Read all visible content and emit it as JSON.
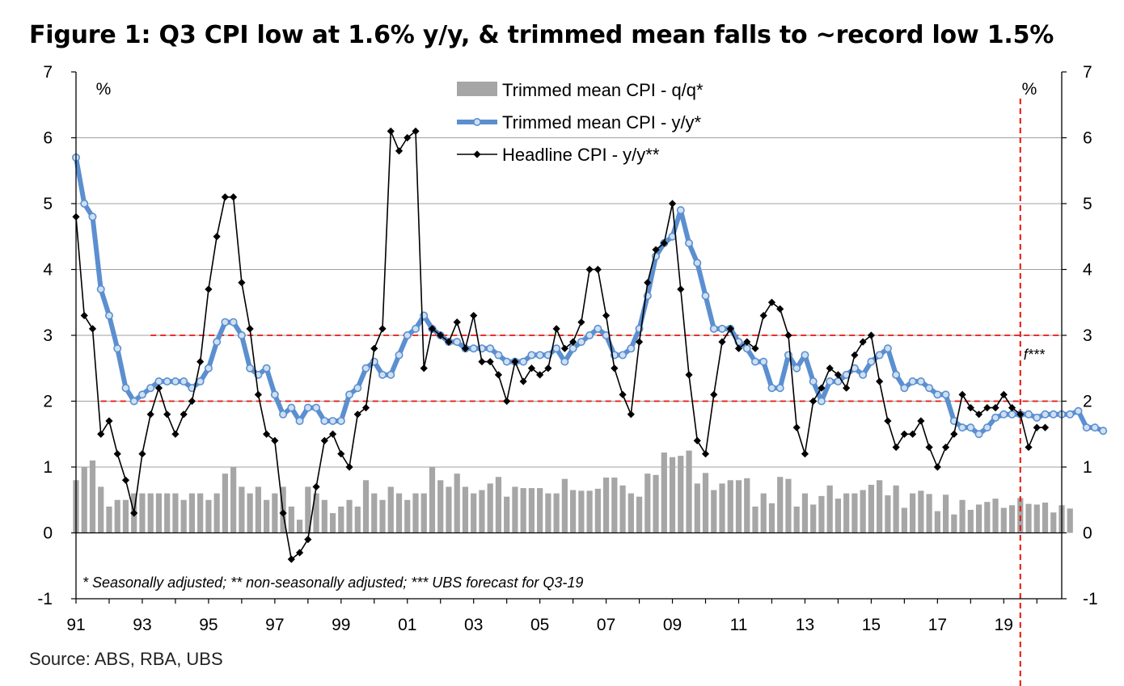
{
  "page": {
    "title": "Figure 1: Q3 CPI low at 1.6% y/y, & trimmed mean falls to ~record low 1.5%",
    "source": "Source:   ABS, RBA, UBS"
  },
  "chart_data": {
    "type": "bar+line",
    "title": "Figure 1: Q3 CPI low at 1.6% y/y, & trimmed mean falls to ~record low 1.5%",
    "ylabel_left": "%",
    "ylabel_right": "%",
    "ylim": [
      -1,
      7
    ],
    "yticks": [
      -1,
      0,
      1,
      2,
      3,
      4,
      5,
      6,
      7
    ],
    "xlim": [
      1991.0,
      2020.75
    ],
    "xticks": [
      {
        "year": 1991,
        "label": "91"
      },
      {
        "year": 1993,
        "label": "93"
      },
      {
        "year": 1995,
        "label": "95"
      },
      {
        "year": 1997,
        "label": "97"
      },
      {
        "year": 1999,
        "label": "99"
      },
      {
        "year": 2001,
        "label": "01"
      },
      {
        "year": 2003,
        "label": "03"
      },
      {
        "year": 2005,
        "label": "05"
      },
      {
        "year": 2007,
        "label": "07"
      },
      {
        "year": 2009,
        "label": "09"
      },
      {
        "year": 2011,
        "label": "11"
      },
      {
        "year": 2013,
        "label": "13"
      },
      {
        "year": 2015,
        "label": "15"
      },
      {
        "year": 2017,
        "label": "17"
      },
      {
        "year": 2019,
        "label": "19"
      }
    ],
    "x_start": 1991.0,
    "x_step": 0.25,
    "colors": {
      "bars": "#a6a6a6",
      "trimmed_line": "#5b8fd0",
      "trimmed_marker_fill": "#cfe0f3",
      "headline": "#000000",
      "reference": "#e8140c"
    },
    "legend": [
      {
        "key": "bars",
        "label": "Trimmed mean CPI - q/q*"
      },
      {
        "key": "trimmed_yy",
        "label": "Trimmed mean CPI - y/y*"
      },
      {
        "key": "headline_yy",
        "label": "Headline CPI - y/y**"
      }
    ],
    "reference_lines": [
      {
        "y": 2,
        "from": 1991.75
      },
      {
        "y": 3,
        "from": 1993.25
      }
    ],
    "forecast_line": {
      "x": 2019.5,
      "label": "f***"
    },
    "footnote": "* Seasonally adjusted; ** non-seasonally adjusted; *** UBS forecast for Q3-19",
    "series": [
      {
        "name": "Trimmed mean CPI - q/q*",
        "kind": "bar",
        "values": [
          0.8,
          1.0,
          1.1,
          0.7,
          0.4,
          0.5,
          0.5,
          0.6,
          0.6,
          0.6,
          0.6,
          0.6,
          0.6,
          0.5,
          0.6,
          0.6,
          0.5,
          0.6,
          0.9,
          1.0,
          0.7,
          0.6,
          0.7,
          0.5,
          0.6,
          0.7,
          0.4,
          0.2,
          0.7,
          0.6,
          0.5,
          0.3,
          0.4,
          0.5,
          0.4,
          0.8,
          0.6,
          0.5,
          0.7,
          0.6,
          0.5,
          0.6,
          0.6,
          1.0,
          0.8,
          0.7,
          0.9,
          0.7,
          0.6,
          0.65,
          0.75,
          0.85,
          0.55,
          0.7,
          0.68,
          0.68,
          0.68,
          0.6,
          0.6,
          0.82,
          0.65,
          0.64,
          0.64,
          0.67,
          0.84,
          0.84,
          0.72,
          0.6,
          0.55,
          0.9,
          0.88,
          1.22,
          1.15,
          1.17,
          1.25,
          0.75,
          0.91,
          0.65,
          0.75,
          0.8,
          0.8,
          0.83,
          0.4,
          0.6,
          0.45,
          0.85,
          0.82,
          0.4,
          0.6,
          0.43,
          0.56,
          0.72,
          0.52,
          0.6,
          0.6,
          0.65,
          0.73,
          0.8,
          0.57,
          0.72,
          0.38,
          0.6,
          0.64,
          0.59,
          0.33,
          0.58,
          0.28,
          0.5,
          0.35,
          0.43,
          0.47,
          0.52,
          0.38,
          0.42,
          0.53,
          0.44,
          0.43,
          0.46,
          0.31,
          0.42,
          0.37
        ]
      },
      {
        "name": "Trimmed mean CPI - y/y*",
        "kind": "line",
        "values": [
          5.7,
          5.0,
          4.8,
          3.7,
          3.3,
          2.8,
          2.2,
          2.0,
          2.1,
          2.2,
          2.3,
          2.3,
          2.3,
          2.3,
          2.2,
          2.3,
          2.5,
          2.9,
          3.2,
          3.2,
          3.0,
          2.5,
          2.4,
          2.5,
          2.1,
          1.8,
          1.9,
          1.7,
          1.9,
          1.9,
          1.7,
          1.7,
          1.7,
          2.1,
          2.2,
          2.5,
          2.6,
          2.4,
          2.4,
          2.7,
          3.0,
          3.1,
          3.3,
          3.1,
          3.0,
          2.9,
          2.9,
          2.8,
          2.8,
          2.8,
          2.8,
          2.7,
          2.6,
          2.6,
          2.6,
          2.7,
          2.7,
          2.7,
          2.8,
          2.6,
          2.8,
          2.9,
          3.0,
          3.1,
          3.0,
          2.7,
          2.7,
          2.8,
          3.1,
          3.6,
          4.2,
          4.4,
          4.5,
          4.9,
          4.4,
          4.1,
          3.6,
          3.1,
          3.1,
          3.1,
          2.9,
          2.8,
          2.6,
          2.6,
          2.2,
          2.2,
          2.7,
          2.5,
          2.7,
          2.3,
          2.0,
          2.3,
          2.3,
          2.4,
          2.5,
          2.4,
          2.6,
          2.7,
          2.8,
          2.4,
          2.2,
          2.3,
          2.3,
          2.2,
          2.1,
          2.1,
          1.7,
          1.6,
          1.6,
          1.5,
          1.6,
          1.75,
          1.8,
          1.8,
          1.8,
          1.8,
          1.75,
          1.8,
          1.8,
          1.8,
          1.8,
          1.85,
          1.6,
          1.6,
          1.55
        ]
      },
      {
        "name": "Headline CPI - y/y**",
        "kind": "line",
        "values": [
          4.8,
          3.3,
          3.1,
          1.5,
          1.7,
          1.2,
          0.8,
          0.3,
          1.2,
          1.8,
          2.2,
          1.8,
          1.5,
          1.8,
          2.0,
          2.6,
          3.7,
          4.5,
          5.1,
          5.1,
          3.8,
          3.1,
          2.1,
          1.5,
          1.4,
          0.3,
          -0.4,
          -0.3,
          -0.1,
          0.7,
          1.4,
          1.5,
          1.2,
          1.0,
          1.8,
          1.9,
          2.8,
          3.1,
          6.1,
          5.8,
          6.0,
          6.1,
          2.5,
          3.1,
          3.0,
          2.9,
          3.2,
          2.8,
          3.3,
          2.6,
          2.6,
          2.4,
          2.0,
          2.6,
          2.3,
          2.5,
          2.4,
          2.5,
          3.1,
          2.8,
          2.9,
          3.2,
          4.0,
          4.0,
          3.3,
          2.5,
          2.1,
          1.8,
          2.9,
          3.8,
          4.3,
          4.4,
          5.0,
          3.7,
          2.4,
          1.4,
          1.2,
          2.1,
          2.9,
          3.1,
          2.8,
          2.9,
          2.8,
          3.3,
          3.5,
          3.4,
          3.0,
          1.6,
          1.2,
          2.0,
          2.2,
          2.5,
          2.4,
          2.2,
          2.7,
          2.9,
          3.0,
          2.3,
          1.7,
          1.3,
          1.5,
          1.5,
          1.7,
          1.3,
          1.0,
          1.3,
          1.5,
          2.1,
          1.9,
          1.8,
          1.9,
          1.9,
          2.1,
          1.9,
          1.8,
          1.3,
          1.6,
          1.6
        ]
      }
    ]
  }
}
